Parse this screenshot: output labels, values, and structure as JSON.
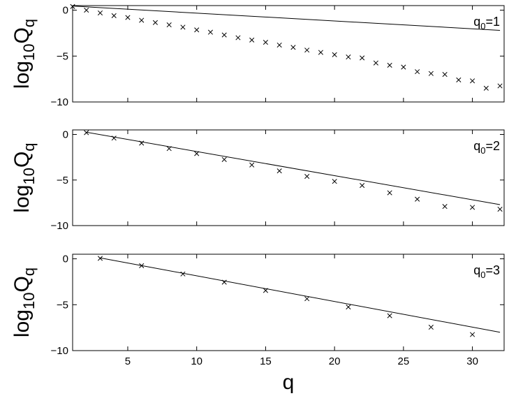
{
  "chart_data": [
    {
      "type": "scatter",
      "ylabel_main": "log",
      "ylabel_sub_mid": "10",
      "ylabel_main2": "Q",
      "ylabel_sub_end": "q",
      "annotation_main": "q",
      "annotation_sub": "0",
      "annotation_tail": "=1",
      "xlim": [
        1,
        32.3
      ],
      "ylim": [
        -10,
        0.5
      ],
      "yticks": [
        0,
        -5,
        -10
      ],
      "ytick_labels": [
        "0",
        "−5",
        "−10"
      ],
      "xticks": [
        5,
        10,
        15,
        20,
        25,
        30
      ],
      "show_xtick_labels": false,
      "grid": false,
      "series": [
        {
          "marker": "x",
          "x": [
            1,
            2,
            3,
            4,
            5,
            6,
            7,
            8,
            9,
            10,
            11,
            12,
            13,
            14,
            15,
            16,
            17,
            18,
            19,
            20,
            21,
            22,
            23,
            24,
            25,
            26,
            27,
            28,
            29,
            30,
            31,
            32
          ],
          "y": [
            0.4,
            0.0,
            -0.3,
            -0.6,
            -0.8,
            -1.1,
            -1.35,
            -1.6,
            -1.85,
            -2.15,
            -2.4,
            -2.7,
            -3.0,
            -3.25,
            -3.5,
            -3.8,
            -4.05,
            -4.35,
            -4.6,
            -4.85,
            -5.1,
            -5.2,
            -5.75,
            -6.0,
            -6.2,
            -6.7,
            -6.9,
            -7.0,
            -7.6,
            -7.7,
            -8.5,
            -8.25
          ]
        },
        {
          "line": true,
          "x": [
            1,
            32
          ],
          "y": [
            0.45,
            -2.2
          ]
        }
      ]
    },
    {
      "type": "scatter",
      "ylabel_main": "log",
      "ylabel_sub_mid": "10",
      "ylabel_main2": "Q",
      "ylabel_sub_end": "q",
      "annotation_main": "q",
      "annotation_sub": "0",
      "annotation_tail": "=2",
      "xlim": [
        1,
        32.3
      ],
      "ylim": [
        -10,
        0.5
      ],
      "yticks": [
        0,
        -5,
        -10
      ],
      "ytick_labels": [
        "0",
        "−5",
        "−10"
      ],
      "xticks": [
        5,
        10,
        15,
        20,
        25,
        30
      ],
      "show_xtick_labels": false,
      "grid": false,
      "series": [
        {
          "marker": "x",
          "x": [
            2,
            4,
            6,
            8,
            10,
            12,
            14,
            16,
            18,
            20,
            22,
            24,
            26,
            28,
            30,
            32
          ],
          "y": [
            0.2,
            -0.4,
            -0.95,
            -1.55,
            -2.1,
            -2.75,
            -3.35,
            -4.0,
            -4.6,
            -5.15,
            -5.6,
            -6.4,
            -7.1,
            -7.9,
            -8.0,
            -8.2
          ]
        },
        {
          "line": true,
          "x": [
            2,
            32
          ],
          "y": [
            0.25,
            -7.7
          ]
        }
      ]
    },
    {
      "type": "scatter",
      "ylabel_main": "log",
      "ylabel_sub_mid": "10",
      "ylabel_main2": "Q",
      "ylabel_sub_end": "q",
      "annotation_main": "q",
      "annotation_sub": "0",
      "annotation_tail": "=3",
      "xlabel": "q",
      "xlim": [
        1,
        32.3
      ],
      "ylim": [
        -10,
        0.5
      ],
      "yticks": [
        0,
        -5,
        -10
      ],
      "ytick_labels": [
        "0",
        "−5",
        "−10"
      ],
      "xticks": [
        5,
        10,
        15,
        20,
        25,
        30
      ],
      "xtick_labels": [
        "5",
        "10",
        "15",
        "20",
        "25",
        "30"
      ],
      "show_xtick_labels": true,
      "grid": false,
      "series": [
        {
          "marker": "x",
          "x": [
            3,
            6,
            9,
            12,
            15,
            18,
            21,
            24,
            27,
            30
          ],
          "y": [
            0.05,
            -0.75,
            -1.65,
            -2.55,
            -3.45,
            -4.35,
            -5.25,
            -6.2,
            -7.45,
            -8.25
          ]
        },
        {
          "line": true,
          "x": [
            3,
            32
          ],
          "y": [
            0.1,
            -8.0
          ]
        }
      ]
    }
  ]
}
